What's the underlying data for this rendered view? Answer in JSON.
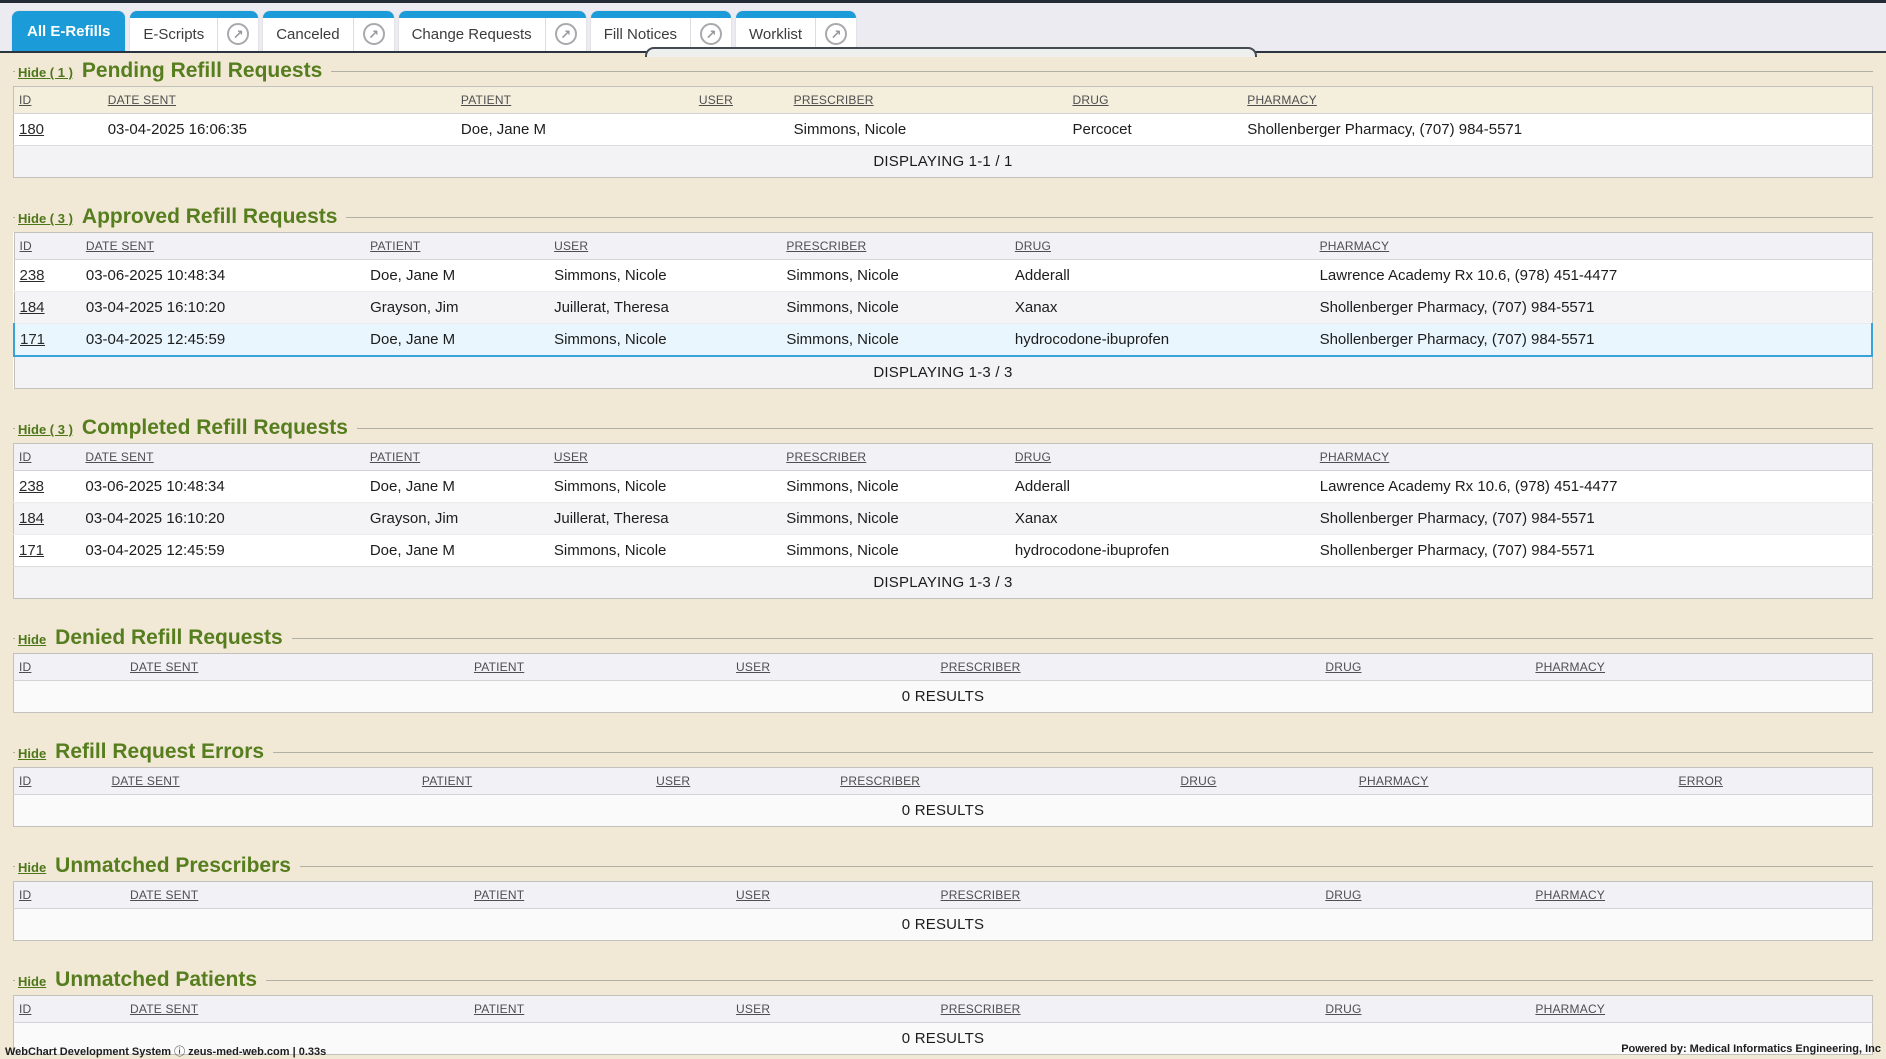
{
  "icons": {
    "popout_glyph": "↗",
    "footer_info_glyph": "ⓘ"
  },
  "colors": {
    "accent_blue": "#1b9bd7",
    "title_green": "#567d1e",
    "hide_link_green": "#4d7619",
    "highlight_row_bg": "#e9f6fd",
    "highlight_row_border": "#39a2d9",
    "page_background": "#f1e9d6"
  },
  "tabs": [
    {
      "label": "All E-Refills",
      "active": true,
      "popout": false
    },
    {
      "label": "E-Scripts",
      "active": false,
      "popout": true
    },
    {
      "label": "Canceled",
      "active": false,
      "popout": true
    },
    {
      "label": "Change Requests",
      "active": false,
      "popout": true
    },
    {
      "label": "Fill Notices",
      "active": false,
      "popout": true
    },
    {
      "label": "Worklist",
      "active": false,
      "popout": true
    }
  ],
  "sections": [
    {
      "id": "pending",
      "hide_label": "Hide ( 1 )",
      "title": "Pending Refill Requests",
      "layout": "pending",
      "columns": [
        "ID",
        "DATE SENT",
        "PATIENT",
        "USER",
        "PRESCRIBER",
        "DRUG",
        "PHARMACY"
      ],
      "rows": [
        [
          "180",
          "03-04-2025 16:06:35",
          "Doe, Jane M",
          "",
          "Simmons, Nicole",
          "Percocet",
          "Shollenberger Pharmacy, (707) 984-5571"
        ]
      ],
      "highlight_row": null,
      "footer": "DISPLAYING 1-1 / 1"
    },
    {
      "id": "approved",
      "hide_label": "Hide ( 3 )",
      "title": "Approved Refill Requests",
      "layout": "standard",
      "columns": [
        "ID",
        "DATE SENT",
        "PATIENT",
        "USER",
        "PRESCRIBER",
        "DRUG",
        "PHARMACY"
      ],
      "rows": [
        [
          "238",
          "03-06-2025 10:48:34",
          "Doe, Jane M",
          "Simmons, Nicole",
          "Simmons, Nicole",
          "Adderall",
          "Lawrence Academy Rx 10.6, (978) 451-4477"
        ],
        [
          "184",
          "03-04-2025 16:10:20",
          "Grayson, Jim",
          "Juillerat, Theresa",
          "Simmons, Nicole",
          "Xanax",
          "Shollenberger Pharmacy, (707) 984-5571"
        ],
        [
          "171",
          "03-04-2025 12:45:59",
          "Doe, Jane M",
          "Simmons, Nicole",
          "Simmons, Nicole",
          "hydrocodone-ibuprofen",
          "Shollenberger Pharmacy, (707) 984-5571"
        ]
      ],
      "highlight_row": 2,
      "footer": "DISPLAYING 1-3 / 3"
    },
    {
      "id": "completed",
      "hide_label": "Hide ( 3 )",
      "title": "Completed Refill Requests",
      "layout": "standard",
      "columns": [
        "ID",
        "DATE SENT",
        "PATIENT",
        "USER",
        "PRESCRIBER",
        "DRUG",
        "PHARMACY"
      ],
      "rows": [
        [
          "238",
          "03-06-2025 10:48:34",
          "Doe, Jane M",
          "Simmons, Nicole",
          "Simmons, Nicole",
          "Adderall",
          "Lawrence Academy Rx 10.6, (978) 451-4477"
        ],
        [
          "184",
          "03-04-2025 16:10:20",
          "Grayson, Jim",
          "Juillerat, Theresa",
          "Simmons, Nicole",
          "Xanax",
          "Shollenberger Pharmacy, (707) 984-5571"
        ],
        [
          "171",
          "03-04-2025 12:45:59",
          "Doe, Jane M",
          "Simmons, Nicole",
          "Simmons, Nicole",
          "hydrocodone-ibuprofen",
          "Shollenberger Pharmacy, (707) 984-5571"
        ]
      ],
      "highlight_row": null,
      "footer": "DISPLAYING 1-3 / 3"
    },
    {
      "id": "denied",
      "hide_label": "Hide",
      "title": "Denied Refill Requests",
      "layout": "wide",
      "columns": [
        "ID",
        "DATE SENT",
        "PATIENT",
        "USER",
        "PRESCRIBER",
        "DRUG",
        "PHARMACY"
      ],
      "rows": [],
      "highlight_row": null,
      "footer": "0 RESULTS"
    },
    {
      "id": "errors",
      "hide_label": "Hide",
      "title": "Refill Request Errors",
      "layout": "errors",
      "columns": [
        "ID",
        "DATE SENT",
        "PATIENT",
        "USER",
        "PRESCRIBER",
        "DRUG",
        "PHARMACY",
        "ERROR"
      ],
      "rows": [],
      "highlight_row": null,
      "footer": "0 RESULTS"
    },
    {
      "id": "unmatched-prescribers",
      "hide_label": "Hide",
      "title": "Unmatched Prescribers",
      "layout": "wide",
      "columns": [
        "ID",
        "DATE SENT",
        "PATIENT",
        "USER",
        "PRESCRIBER",
        "DRUG",
        "PHARMACY"
      ],
      "rows": [],
      "highlight_row": null,
      "footer": "0 RESULTS"
    },
    {
      "id": "unmatched-patients",
      "hide_label": "Hide",
      "title": "Unmatched Patients",
      "layout": "wide",
      "columns": [
        "ID",
        "DATE SENT",
        "PATIENT",
        "USER",
        "PRESCRIBER",
        "DRUG",
        "PHARMACY"
      ],
      "rows": [],
      "highlight_row": null,
      "footer": "0 RESULTS"
    }
  ],
  "page_footer": {
    "left_system": "WebChart Development System",
    "left_host": "zeus-med-web.com | 0.33s",
    "right": "Powered by: Medical Informatics Engineering, Inc"
  }
}
